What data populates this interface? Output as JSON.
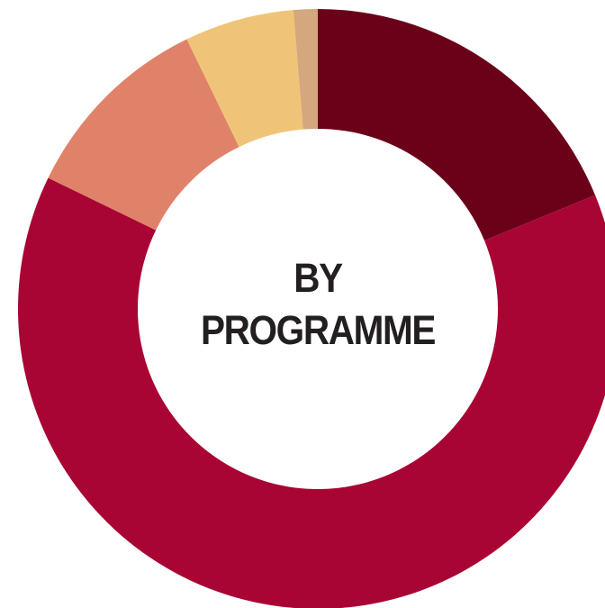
{
  "chart_data": {
    "type": "donut",
    "title": "BY PROGRAMME",
    "values": [
      18.8,
      63.4,
      10.6,
      5.9,
      1.3
    ],
    "colors": [
      "#6b0019",
      "#a80534",
      "#e0826a",
      "#f0c478",
      "#d4a77f"
    ]
  }
}
